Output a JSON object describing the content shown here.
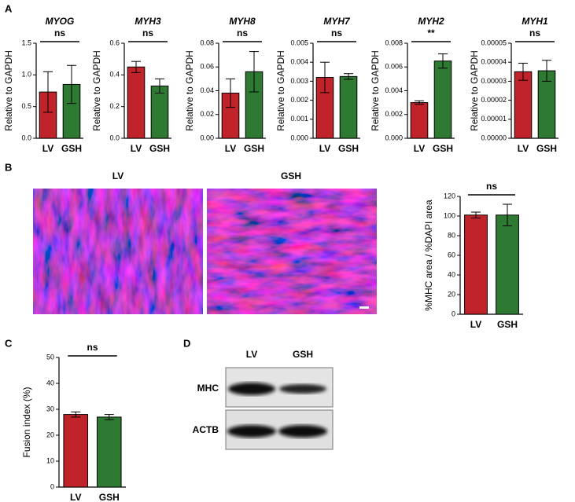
{
  "chart_data": [
    {
      "type": "bar",
      "title": "MYOG",
      "ylabel": "Relative to GAPDH",
      "annotation": "ns",
      "categories": [
        "LV",
        "GSH"
      ],
      "values": [
        0.73,
        0.85
      ],
      "errors": [
        0.32,
        0.3
      ],
      "colors": [
        "#c0232a",
        "#2e7a32"
      ],
      "ylim": [
        0,
        1.5
      ],
      "yticks": [
        {
          "value": 0,
          "label": "0.0"
        },
        0.5,
        {
          "value": 1,
          "label": "1.0"
        },
        1.5
      ]
    },
    {
      "type": "bar",
      "title": "MYH3",
      "ylabel": "Relative to GAPDH",
      "annotation": "ns",
      "categories": [
        "LV",
        "GSH"
      ],
      "values": [
        0.45,
        0.33
      ],
      "errors": [
        0.035,
        0.045
      ],
      "colors": [
        "#c0232a",
        "#2e7a32"
      ],
      "ylim": [
        0,
        0.6
      ],
      "yticks": [
        {
          "value": 0,
          "label": "0.0"
        },
        0.2,
        0.4,
        0.6
      ]
    },
    {
      "type": "bar",
      "title": "MYH8",
      "ylabel": "Relative to GAPDH",
      "annotation": "ns",
      "categories": [
        "LV",
        "GSH"
      ],
      "values": [
        0.038,
        0.056
      ],
      "errors": [
        0.012,
        0.017
      ],
      "colors": [
        "#c0232a",
        "#2e7a32"
      ],
      "ylim": [
        0,
        0.08
      ],
      "yticks": [
        {
          "value": 0,
          "label": "0.00"
        },
        0.02,
        0.04,
        0.06,
        0.08
      ]
    },
    {
      "type": "bar",
      "title": "MYH7",
      "ylabel": "Relative to GAPDH",
      "annotation": "ns",
      "categories": [
        "LV",
        "GSH"
      ],
      "values": [
        0.0032,
        0.00325
      ],
      "errors": [
        0.0008,
        0.00015
      ],
      "colors": [
        "#c0232a",
        "#2e7a32"
      ],
      "ylim": [
        0,
        0.005
      ],
      "yticks": [
        {
          "value": 0,
          "label": "0.000"
        },
        0.001,
        0.002,
        0.003,
        0.004,
        0.005
      ]
    },
    {
      "type": "bar",
      "title": "MYH2",
      "ylabel": "Relative to GAPDH",
      "annotation": "**",
      "categories": [
        "LV",
        "GSH"
      ],
      "values": [
        0.003,
        0.0065
      ],
      "errors": [
        0.00015,
        0.0006
      ],
      "colors": [
        "#c0232a",
        "#2e7a32"
      ],
      "ylim": [
        0,
        0.008
      ],
      "yticks": [
        {
          "value": 0,
          "label": "0.000"
        },
        0.002,
        0.004,
        0.006,
        0.008
      ]
    },
    {
      "type": "bar",
      "title": "MYH1",
      "ylabel": "Relative to GAPDH",
      "annotation": "ns",
      "categories": [
        "LV",
        "GSH"
      ],
      "values": [
        3.5e-05,
        3.55e-05
      ],
      "errors": [
        4.5e-06,
        5.5e-06
      ],
      "colors": [
        "#c0232a",
        "#2e7a32"
      ],
      "ylim": [
        0,
        5e-05
      ],
      "yticks": [
        {
          "value": 0,
          "label": "0.00000"
        },
        1e-05,
        2e-05,
        3e-05,
        4e-05,
        5e-05
      ]
    },
    {
      "type": "bar",
      "ylabel": "%MHC area / %DAPI area",
      "annotation": "ns",
      "categories": [
        "LV",
        "GSH"
      ],
      "values": [
        101,
        101
      ],
      "errors": [
        3,
        11
      ],
      "colors": [
        "#c0232a",
        "#2e7a32"
      ],
      "ylim": [
        0,
        120
      ],
      "yticks": [
        0,
        20,
        40,
        60,
        80,
        100,
        120
      ]
    },
    {
      "type": "bar",
      "ylabel": "Fusion index (%)",
      "annotation": "ns",
      "categories": [
        "LV",
        "GSH"
      ],
      "values": [
        28,
        27
      ],
      "errors": [
        1,
        1
      ],
      "colors": [
        "#c0232a",
        "#2e7a32"
      ],
      "ylim": [
        0,
        50
      ],
      "yticks": [
        0,
        10,
        20,
        30,
        40,
        50
      ]
    }
  ],
  "panel_labels": [
    "A",
    "B",
    "C",
    "D"
  ],
  "images": {
    "labels": [
      "LV",
      "GSH"
    ]
  },
  "blot": {
    "columns": [
      "LV",
      "GSH"
    ],
    "rows": [
      "MHC",
      "ACTB"
    ]
  }
}
